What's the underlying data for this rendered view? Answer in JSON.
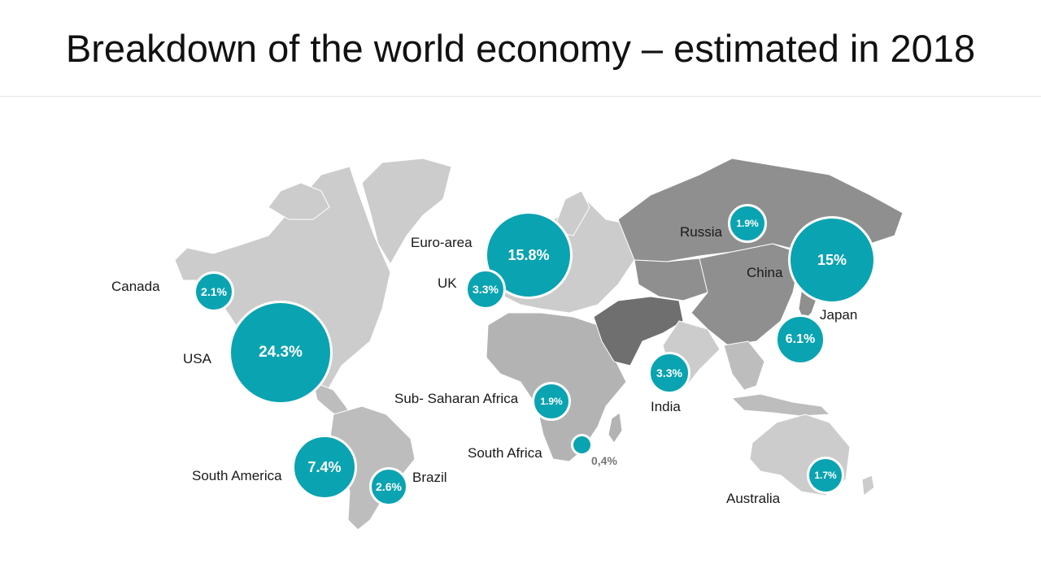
{
  "title": "Breakdown of the world economy – estimated in 2018",
  "colors": {
    "bubble": "#0aa3b1",
    "land_light": "#cccccc",
    "land_mid": "#b3b3b3",
    "land_dark": "#8f8f8f",
    "middle_east": "#6f6f6f"
  },
  "regions": [
    {
      "name": "Canada",
      "value": "2.1%"
    },
    {
      "name": "USA",
      "value": "24.3%"
    },
    {
      "name": "Euro-area",
      "value": "15.8%"
    },
    {
      "name": "UK",
      "value": "3.3%"
    },
    {
      "name": "Russia",
      "value": "1.9%"
    },
    {
      "name": "China",
      "value": "15%"
    },
    {
      "name": "Japan",
      "value": "6.1%"
    },
    {
      "name": "India",
      "value": "3.3%"
    },
    {
      "name": "Sub- Saharan Africa",
      "value": "1.9%"
    },
    {
      "name": "South Africa",
      "value": "0,4%"
    },
    {
      "name": "South America",
      "value": "7.4%"
    },
    {
      "name": "Brazil",
      "value": "2.6%"
    },
    {
      "name": "Australia",
      "value": "1.7%"
    }
  ]
}
